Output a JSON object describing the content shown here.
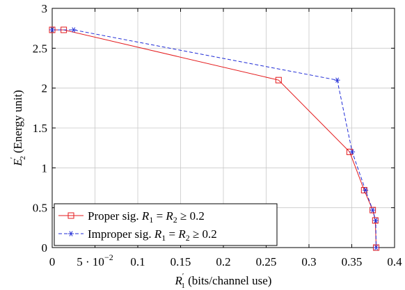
{
  "chart_data": {
    "type": "line",
    "title": "",
    "xlabel_main": "R",
    "xlabel_sub": "1",
    "xlabel_sup": "′",
    "xlabel_rest": " (bits/channel use)",
    "ylabel_main": "E",
    "ylabel_sub": "2",
    "ylabel_sup": "′",
    "ylabel_rest": " (Energy unit)",
    "xlim": [
      0,
      0.4
    ],
    "ylim": [
      0,
      3
    ],
    "xticks": [
      {
        "v": 0,
        "label": "0"
      },
      {
        "v": 0.05,
        "label": "5 · 10",
        "exp": "−2"
      },
      {
        "v": 0.1,
        "label": "0.1"
      },
      {
        "v": 0.15,
        "label": "0.15"
      },
      {
        "v": 0.2,
        "label": "0.2"
      },
      {
        "v": 0.25,
        "label": "0.25"
      },
      {
        "v": 0.3,
        "label": "0.3"
      },
      {
        "v": 0.35,
        "label": "0.35"
      },
      {
        "v": 0.4,
        "label": "0.4"
      }
    ],
    "yticks": [
      {
        "v": 0,
        "label": "0"
      },
      {
        "v": 0.5,
        "label": "0.5"
      },
      {
        "v": 1,
        "label": "1"
      },
      {
        "v": 1.5,
        "label": "1.5"
      },
      {
        "v": 2,
        "label": "2"
      },
      {
        "v": 2.5,
        "label": "2.5"
      },
      {
        "v": 3,
        "label": "3"
      }
    ],
    "grid": true,
    "legend_position": "bottom-left",
    "series": [
      {
        "name": "Proper sig. R1 = R2 ≥ 0.2",
        "legend_parts": [
          "Proper sig. ",
          "R",
          "1",
          " = ",
          "R",
          "2",
          " ≥ 0.2"
        ],
        "color": "#e41a1c",
        "marker": "square",
        "dash": "solid",
        "points": [
          [
            0.0,
            2.73
          ],
          [
            0.0135,
            2.73
          ],
          [
            0.2645,
            2.1
          ],
          [
            0.3475,
            1.2
          ],
          [
            0.3645,
            0.72
          ],
          [
            0.3745,
            0.47
          ],
          [
            0.3775,
            0.34
          ],
          [
            0.3785,
            0.0
          ]
        ]
      },
      {
        "name": "Improper sig. R1 = R2 ≥ 0.2",
        "legend_parts": [
          "Improper sig. ",
          "R",
          "1",
          " = ",
          "R",
          "2",
          " ≥ 0.2"
        ],
        "color": "#1f2bd6",
        "marker": "star",
        "dash": "dashed",
        "points": [
          [
            0.0,
            2.73
          ],
          [
            0.025,
            2.73
          ],
          [
            0.333,
            2.1
          ],
          [
            0.3505,
            1.2
          ],
          [
            0.366,
            0.72
          ],
          [
            0.3745,
            0.47
          ],
          [
            0.378,
            0.34
          ],
          [
            0.3785,
            0.0
          ]
        ]
      }
    ]
  }
}
